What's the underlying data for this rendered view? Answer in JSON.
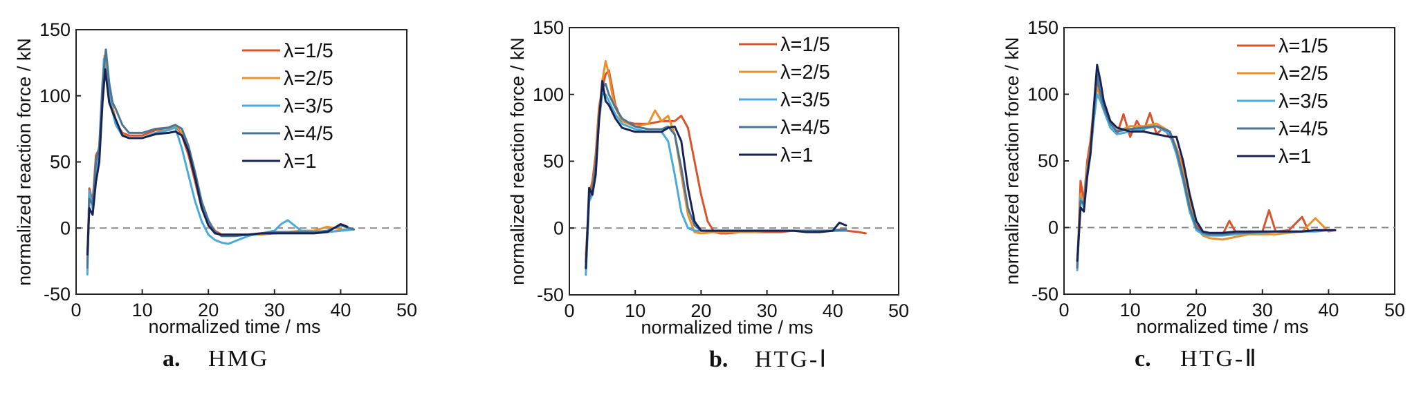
{
  "chart_data": [
    {
      "type": "line",
      "caption_letter": "a.",
      "caption_name": "HMG",
      "xlabel": "normalized time / ms",
      "ylabel": "normalized reaction force / kN",
      "xlim": [
        0,
        50
      ],
      "ylim": [
        -50,
        150
      ],
      "xticks": [
        "0",
        "10",
        "20",
        "30",
        "40",
        "50"
      ],
      "yticks": [
        "-50",
        "0",
        "50",
        "100",
        "150"
      ],
      "legend_position": "top-right",
      "zero_line": true,
      "series": [
        {
          "name": "λ=1/5",
          "color": "#d9542b",
          "x": [
            1.7,
            2,
            2.5,
            3,
            3.5,
            4,
            4.4,
            5,
            5.5,
            6,
            7,
            8,
            10,
            12,
            14,
            15,
            16,
            17,
            18,
            19,
            20,
            21,
            22,
            24,
            26,
            28,
            30,
            32,
            34,
            36,
            38,
            40,
            42
          ],
          "y": [
            -25,
            30,
            20,
            55,
            60,
            100,
            128,
            100,
            90,
            80,
            72,
            70,
            70,
            74,
            76,
            78,
            70,
            55,
            35,
            15,
            5,
            -2,
            -5,
            -5,
            -5,
            -4,
            -4,
            -3,
            -3,
            -3,
            -3,
            -2,
            -1
          ]
        },
        {
          "name": "λ=2/5",
          "color": "#e8912b",
          "x": [
            1.7,
            2,
            2.5,
            3,
            3.5,
            4,
            4.3,
            5,
            5.5,
            6,
            7,
            8,
            10,
            12,
            14,
            15,
            16,
            17,
            18,
            19,
            20,
            21,
            22,
            24,
            26,
            28,
            30,
            32,
            34,
            36,
            38,
            40,
            42
          ],
          "y": [
            -28,
            25,
            18,
            50,
            55,
            98,
            130,
            105,
            92,
            82,
            70,
            68,
            68,
            72,
            75,
            78,
            72,
            60,
            40,
            18,
            5,
            -3,
            -6,
            -6,
            -5,
            -5,
            -4,
            -3,
            -2,
            -2,
            1,
            -1,
            -1
          ]
        },
        {
          "name": "λ=3/5",
          "color": "#4aaad8",
          "x": [
            1.7,
            2,
            2.5,
            3,
            3.5,
            4,
            4.2,
            5,
            5.5,
            6,
            7,
            8,
            10,
            12,
            14,
            15,
            16,
            17,
            18,
            19,
            20,
            21,
            22,
            23,
            24,
            26,
            28,
            30,
            31,
            32,
            33,
            34,
            36,
            38,
            40,
            42
          ],
          "y": [
            -35,
            28,
            15,
            45,
            60,
            105,
            128,
            100,
            88,
            78,
            70,
            68,
            68,
            72,
            74,
            76,
            60,
            40,
            20,
            5,
            -5,
            -9,
            -11,
            -12,
            -10,
            -6,
            -4,
            -2,
            3,
            6,
            2,
            -2,
            -3,
            -3,
            -2,
            -1
          ]
        },
        {
          "name": "λ=4/5",
          "color": "#4a7594",
          "x": [
            1.7,
            2,
            2.5,
            3,
            3.5,
            4,
            4.5,
            5,
            5.5,
            6,
            7,
            8,
            10,
            12,
            14,
            15,
            16,
            17,
            18,
            19,
            20,
            21,
            22,
            24,
            26,
            28,
            30,
            32,
            34,
            36,
            38,
            40,
            42
          ],
          "y": [
            -30,
            22,
            18,
            50,
            62,
            110,
            135,
            110,
            95,
            90,
            78,
            72,
            72,
            75,
            76,
            78,
            75,
            62,
            42,
            20,
            6,
            -3,
            -6,
            -6,
            -5,
            -4,
            -3,
            -3,
            -3,
            -3,
            -2,
            2,
            -1
          ]
        },
        {
          "name": "λ=1",
          "color": "#172354",
          "x": [
            1.7,
            2,
            2.5,
            3,
            3.5,
            4,
            4.4,
            5,
            5.5,
            6,
            7,
            8,
            10,
            12,
            14,
            15,
            16,
            17,
            18,
            19,
            20,
            21,
            22,
            24,
            26,
            28,
            30,
            32,
            34,
            36,
            38,
            40,
            41
          ],
          "y": [
            -20,
            15,
            10,
            35,
            50,
            95,
            120,
            95,
            88,
            82,
            70,
            68,
            68,
            71,
            72,
            73,
            70,
            58,
            38,
            15,
            2,
            -4,
            -5,
            -5,
            -5,
            -4,
            -4,
            -4,
            -4,
            -4,
            -3,
            3,
            1
          ]
        }
      ]
    },
    {
      "type": "line",
      "caption_letter": "b.",
      "caption_name": "HTG-Ⅰ",
      "xlabel": "normalized time / ms",
      "ylabel": "normalized reaction force / kN",
      "xlim": [
        0,
        50
      ],
      "ylim": [
        -50,
        150
      ],
      "xticks": [
        "0",
        "10",
        "20",
        "30",
        "40",
        "50"
      ],
      "yticks": [
        "-50",
        "0",
        "50",
        "100",
        "150"
      ],
      "legend_position": "top-right",
      "zero_line": true,
      "series": [
        {
          "name": "λ=1/5",
          "color": "#d9542b",
          "x": [
            2.5,
            3,
            3.5,
            4,
            4.5,
            5,
            5.5,
            6,
            6.5,
            7,
            8,
            10,
            12,
            14,
            16,
            17,
            18,
            19,
            20,
            21,
            22,
            23,
            24,
            26,
            28,
            30,
            32,
            34,
            36,
            38,
            40,
            42,
            44,
            45
          ],
          "y": [
            -25,
            25,
            35,
            55,
            90,
            105,
            115,
            118,
            105,
            92,
            80,
            78,
            78,
            80,
            80,
            84,
            75,
            50,
            25,
            5,
            -3,
            -4,
            -4,
            -3,
            -3,
            -3,
            -3,
            -2,
            -2,
            -2,
            -2,
            -2,
            -3,
            -4
          ]
        },
        {
          "name": "λ=2/5",
          "color": "#e8912b",
          "x": [
            2.5,
            3,
            3.5,
            4,
            4.5,
            5,
            5.5,
            6,
            6.5,
            7,
            8,
            10,
            12,
            13,
            14,
            15,
            16,
            17,
            18,
            19,
            20,
            22,
            24,
            26,
            28,
            30,
            32,
            34,
            36,
            38,
            40,
            41,
            42
          ],
          "y": [
            -20,
            20,
            30,
            50,
            85,
            110,
            125,
            115,
            100,
            90,
            80,
            76,
            78,
            88,
            80,
            84,
            70,
            40,
            10,
            -3,
            -4,
            -3,
            -3,
            -3,
            -3,
            -2,
            -2,
            -2,
            -2,
            -2,
            -2,
            -1,
            -1
          ]
        },
        {
          "name": "λ=3/5",
          "color": "#4aaad8",
          "x": [
            2.5,
            3,
            3.5,
            4,
            4.5,
            5,
            5.5,
            6,
            7,
            8,
            10,
            12,
            14,
            15,
            16,
            17,
            18,
            19,
            20,
            22,
            24,
            26,
            28,
            30,
            32,
            34,
            36,
            38,
            40,
            42
          ],
          "y": [
            -35,
            20,
            25,
            45,
            80,
            100,
            100,
            95,
            85,
            78,
            74,
            72,
            72,
            65,
            40,
            12,
            0,
            -2,
            -2,
            -2,
            -2,
            -2,
            -2,
            -2,
            -2,
            -2,
            -2,
            -2,
            -2,
            -2
          ]
        },
        {
          "name": "λ=4/5",
          "color": "#4a7594",
          "x": [
            2.5,
            3,
            3.5,
            4,
            4.5,
            5,
            5.5,
            6,
            7,
            8,
            10,
            12,
            14,
            15,
            16,
            17,
            18,
            19,
            20,
            22,
            24,
            26,
            28,
            30,
            32,
            34,
            36,
            38,
            40,
            42
          ],
          "y": [
            -30,
            22,
            28,
            48,
            82,
            105,
            108,
            100,
            90,
            82,
            76,
            74,
            74,
            76,
            70,
            45,
            15,
            2,
            -2,
            -2,
            -2,
            -2,
            -2,
            -2,
            -2,
            -2,
            -2,
            -2,
            -2,
            -1
          ]
        },
        {
          "name": "λ=1",
          "color": "#172354",
          "x": [
            2.5,
            3,
            3.5,
            4,
            4.5,
            5,
            5.5,
            6,
            7,
            8,
            10,
            12,
            14,
            15,
            16,
            17,
            18,
            19,
            20,
            22,
            24,
            26,
            28,
            30,
            32,
            34,
            36,
            38,
            40,
            41,
            42
          ],
          "y": [
            -30,
            30,
            25,
            40,
            80,
            110,
            95,
            92,
            82,
            75,
            72,
            72,
            72,
            75,
            76,
            65,
            30,
            5,
            -2,
            -2,
            -2,
            -2,
            -2,
            -2,
            -2,
            -2,
            -3,
            -3,
            -2,
            4,
            2
          ]
        }
      ]
    },
    {
      "type": "line",
      "caption_letter": "c.",
      "caption_name": "HTG-Ⅱ",
      "xlabel": "normalized time / ms",
      "ylabel": "normalized reaction force / kN",
      "xlim": [
        0,
        50
      ],
      "ylim": [
        -50,
        150
      ],
      "xticks": [
        "0",
        "10",
        "20",
        "30",
        "40",
        "50"
      ],
      "yticks": [
        "-50",
        "0",
        "50",
        "100",
        "150"
      ],
      "legend_position": "top-right",
      "zero_line": true,
      "series": [
        {
          "name": "λ=1/5",
          "color": "#d9542b",
          "x": [
            2,
            2.5,
            3,
            3.5,
            4,
            4.5,
            5,
            5.5,
            6,
            7,
            8,
            9,
            10,
            11,
            12,
            13,
            14,
            15,
            16,
            17,
            18,
            19,
            20,
            21,
            22,
            24,
            25,
            26,
            28,
            30,
            31,
            32,
            34,
            36,
            37,
            38,
            40,
            41
          ],
          "y": [
            -30,
            35,
            20,
            50,
            65,
            90,
            110,
            100,
            92,
            75,
            70,
            85,
            68,
            80,
            72,
            86,
            70,
            75,
            68,
            60,
            45,
            20,
            2,
            -5,
            -6,
            -5,
            5,
            -4,
            -3,
            -3,
            13,
            -3,
            -2,
            8,
            -3,
            -2,
            -2,
            -2
          ]
        },
        {
          "name": "λ=2/5",
          "color": "#e8912b",
          "x": [
            2,
            2.5,
            3,
            3.5,
            4,
            4.5,
            5,
            5.5,
            6,
            7,
            8,
            10,
            12,
            14,
            16,
            17,
            18,
            19,
            20,
            21,
            22,
            24,
            26,
            28,
            30,
            32,
            34,
            36,
            38,
            40,
            41
          ],
          "y": [
            -28,
            25,
            18,
            45,
            60,
            85,
            105,
            98,
            90,
            78,
            72,
            76,
            76,
            78,
            72,
            60,
            42,
            18,
            0,
            -6,
            -8,
            -9,
            -7,
            -5,
            -5,
            -5,
            -4,
            -3,
            7,
            -3,
            -2
          ]
        },
        {
          "name": "λ=3/5",
          "color": "#4aaad8",
          "x": [
            2,
            2.5,
            3,
            3.5,
            4,
            4.5,
            5,
            5.5,
            6,
            7,
            8,
            10,
            12,
            14,
            16,
            17,
            18,
            19,
            20,
            21,
            22,
            24,
            26,
            28,
            30,
            32,
            34,
            36,
            38,
            40,
            41
          ],
          "y": [
            -32,
            22,
            15,
            40,
            55,
            80,
            100,
            95,
            88,
            75,
            70,
            72,
            74,
            76,
            70,
            55,
            35,
            12,
            -2,
            -5,
            -6,
            -6,
            -5,
            -4,
            -4,
            -3,
            -3,
            -3,
            -3,
            -2,
            -2
          ]
        },
        {
          "name": "λ=4/5",
          "color": "#4a7594",
          "x": [
            2,
            2.5,
            3,
            3.5,
            4,
            4.5,
            5,
            5.5,
            6,
            7,
            8,
            10,
            12,
            14,
            16,
            17,
            18,
            19,
            20,
            21,
            22,
            24,
            26,
            28,
            30,
            32,
            34,
            36,
            38,
            40,
            41
          ],
          "y": [
            -30,
            20,
            18,
            42,
            58,
            85,
            115,
            100,
            90,
            78,
            72,
            74,
            75,
            76,
            72,
            58,
            38,
            15,
            0,
            -4,
            -5,
            -5,
            -4,
            -4,
            -3,
            -3,
            -3,
            -3,
            -2,
            -2,
            -2
          ]
        },
        {
          "name": "λ=1",
          "color": "#172354",
          "x": [
            2,
            2.5,
            3,
            3.5,
            4,
            4.5,
            5,
            5.5,
            6,
            7,
            8,
            10,
            12,
            14,
            16,
            17,
            18,
            19,
            20,
            21,
            22,
            24,
            26,
            28,
            30,
            32,
            34,
            36,
            38,
            40,
            41
          ],
          "y": [
            -25,
            15,
            12,
            38,
            55,
            90,
            122,
            110,
            95,
            80,
            75,
            72,
            72,
            70,
            68,
            68,
            50,
            25,
            5,
            -3,
            -4,
            -4,
            -3,
            -3,
            -3,
            -3,
            -3,
            -3,
            -2,
            -2,
            -2
          ]
        }
      ]
    }
  ]
}
